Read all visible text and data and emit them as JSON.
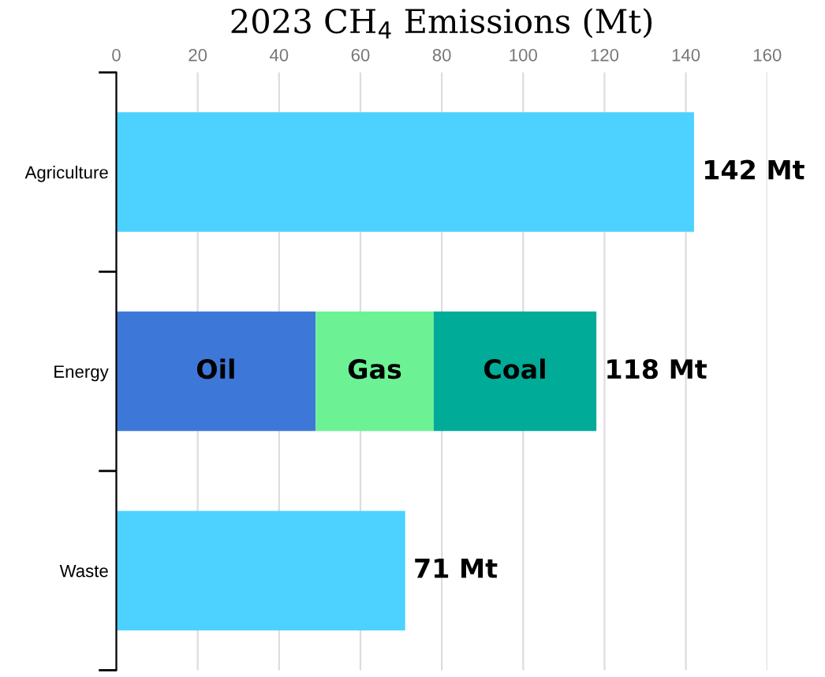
{
  "chart_data": {
    "type": "bar",
    "orientation": "horizontal",
    "stacked": true,
    "title": "2023 CH$_{4}$ Emissions (Mt)",
    "categories": [
      "Agriculture",
      "Energy",
      "Waste"
    ],
    "series": [
      {
        "color": "#4dd2ff",
        "values": [
          142,
          null,
          71
        ]
      },
      {
        "name": "Oil",
        "color": "#3d78d8",
        "values": [
          null,
          49,
          null
        ]
      },
      {
        "name": "Gas",
        "color": "#6cf295",
        "values": [
          null,
          29,
          null
        ]
      },
      {
        "name": "Coal",
        "color": "#00ab98",
        "values": [
          null,
          40,
          null
        ]
      }
    ],
    "totals": [
      "142 Mt",
      "118 Mt",
      "71 Mt"
    ],
    "xlim": [
      0,
      160
    ],
    "xticks": [
      0,
      20,
      40,
      60,
      80,
      100,
      120,
      140,
      160
    ],
    "grid": "x",
    "legend": false
  }
}
